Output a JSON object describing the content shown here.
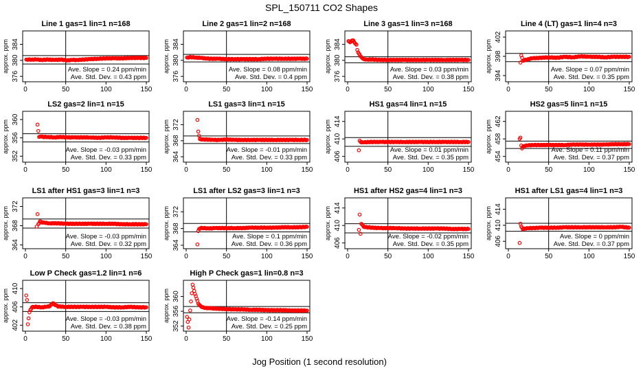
{
  "figure": {
    "title": "SPL_150711  CO2 Shapes",
    "xlabel": "Jog Position (1 second resolution)"
  },
  "chart_data": [
    {
      "type": "scatter",
      "title": "Line 1 gas=1 lin=1 n=168",
      "ylabel": "approx. ppm",
      "xlim": [
        0,
        150
      ],
      "ylim": [
        375,
        387
      ],
      "yticks": [
        376,
        380,
        384
      ],
      "xticks": [
        0,
        50,
        100,
        150
      ],
      "hlines": [
        381.2,
        379.1
      ],
      "vline": 50,
      "annotations": [
        "Ave. Slope = 0.24  ppm/min",
        "Ave. Std. Dev. = 0.43  ppm"
      ],
      "series": [
        {
          "color": "#ff0000",
          "shape": "start-flat-then-slight-rise",
          "x": [
            1,
            8,
            14,
            20,
            28,
            36,
            44,
            52,
            58,
            64,
            72,
            80,
            90,
            100,
            110,
            120,
            130,
            140,
            150
          ],
          "y": [
            380.2,
            380.2,
            380.2,
            380.1,
            380.2,
            380.1,
            380.2,
            380.0,
            380.1,
            380.1,
            380.2,
            380.3,
            380.4,
            380.5,
            380.5,
            380.5,
            380.6,
            380.6,
            380.6
          ]
        }
      ]
    },
    {
      "type": "scatter",
      "title": "Line 2 gas=1 lin=2 n=168",
      "ylabel": "approx. ppm",
      "xlim": [
        0,
        150
      ],
      "ylim": [
        375,
        387
      ],
      "yticks": [
        376,
        380,
        384
      ],
      "xticks": [
        0,
        50,
        100,
        150
      ],
      "hlines": [
        381.5,
        379.6
      ],
      "vline": 50,
      "annotations": [
        "Ave. Slope = 0.08  ppm/min",
        "Ave. Std. Dev. = 0.4  ppm"
      ],
      "series": [
        {
          "color": "#ff0000",
          "x": [
            1,
            6,
            12,
            18,
            24,
            30,
            40,
            50,
            60,
            70,
            80,
            90,
            100,
            110,
            120,
            130,
            140,
            150
          ],
          "y": [
            380.7,
            380.8,
            380.7,
            380.6,
            380.5,
            380.4,
            380.4,
            380.3,
            380.3,
            380.3,
            380.3,
            380.3,
            380.4,
            380.4,
            380.4,
            380.4,
            380.4,
            380.4
          ]
        }
      ]
    },
    {
      "type": "scatter",
      "title": "Line 3 gas=1 lin=3 n=168",
      "ylabel": "approx. ppm",
      "xlim": [
        0,
        150
      ],
      "ylim": [
        375,
        387
      ],
      "yticks": [
        376,
        380,
        384
      ],
      "xticks": [
        0,
        50,
        100,
        150
      ],
      "hlines": [
        380.9,
        379.4
      ],
      "vline": 50,
      "annotations": [
        "Ave. Slope = 0.03  ppm/min",
        "Ave. Std. Dev. = 0.38  ppm"
      ],
      "series": [
        {
          "color": "#ff0000",
          "x": [
            1,
            3,
            5,
            7,
            9,
            11,
            12,
            13,
            14,
            15,
            16,
            18,
            20,
            24,
            30,
            40,
            50,
            60,
            70,
            80,
            90,
            100,
            110,
            120,
            130,
            140,
            150
          ],
          "y": [
            384.8,
            384.5,
            384.9,
            385.0,
            384.3,
            383.9,
            382.6,
            382.0,
            381.7,
            381.4,
            381.0,
            380.6,
            380.3,
            380.2,
            380.2,
            380.1,
            380.1,
            380.1,
            380.1,
            380.1,
            380.1,
            380.1,
            380.1,
            380.1,
            380.1,
            380.1,
            380.1
          ]
        }
      ]
    },
    {
      "type": "scatter",
      "title": "Line 4 (LT) gas=1 lin=4 n=3",
      "ylabel": "approx. ppm",
      "xlim": [
        0,
        150
      ],
      "ylim": [
        393,
        403
      ],
      "yticks": [
        394,
        398,
        402
      ],
      "xticks": [
        0,
        50,
        100,
        150
      ],
      "hlines": [
        398.6,
        396.9
      ],
      "vline": 50,
      "annotations": [
        "Ave. Slope = 0.07  ppm/min",
        "Ave. Std. Dev. = 0.35  ppm"
      ],
      "series": [
        {
          "color": "#ff0000",
          "x": [
            15,
            16,
            17,
            18,
            20,
            24,
            30,
            40,
            50,
            60,
            70,
            80,
            90,
            100,
            110,
            120,
            130,
            140,
            150
          ],
          "y": [
            396.7,
            398.2,
            397.7,
            397.1,
            397.2,
            397.4,
            397.6,
            397.7,
            397.8,
            397.7,
            397.9,
            397.8,
            398.0,
            397.9,
            397.9,
            397.8,
            397.9,
            397.9,
            397.9
          ]
        }
      ]
    },
    {
      "type": "scatter",
      "title": "LS2 gas=2 lin=1 n=15",
      "ylabel": "approx. ppm",
      "xlim": [
        0,
        150
      ],
      "ylim": [
        351,
        361.5
      ],
      "yticks": [
        352,
        356,
        360
      ],
      "xticks": [
        0,
        50,
        100,
        150
      ],
      "hlines": [
        356.9,
        355.1
      ],
      "vline": 50,
      "annotations": [
        "Ave. Slope = -0.03  ppm/min",
        "Ave. Std. Dev. = 0.33  ppm"
      ],
      "series": [
        {
          "color": "#ff0000",
          "x": [
            15,
            17,
            19,
            22,
            28,
            36,
            44,
            52,
            60,
            70,
            80,
            90,
            100,
            110,
            120,
            130,
            140,
            150
          ],
          "y": [
            358.9,
            356.2,
            356.3,
            356.2,
            356.2,
            356.1,
            356.2,
            356.1,
            356.1,
            356.1,
            356.1,
            356.0,
            356.1,
            356.1,
            356.0,
            356.0,
            356.0,
            356.0
          ]
        }
      ]
    },
    {
      "type": "scatter",
      "title": "LS1 gas=3 lin=1 n=15",
      "ylabel": "approx. ppm",
      "xlim": [
        0,
        150
      ],
      "ylim": [
        363,
        375
      ],
      "yticks": [
        364,
        368,
        372
      ],
      "xticks": [
        0,
        50,
        100,
        150
      ],
      "hlines": [
        369.2,
        367.3
      ],
      "vline": 50,
      "annotations": [
        "Ave. Slope = -0.01  ppm/min",
        "Ave. Std. Dev. = 0.33  ppm"
      ],
      "series": [
        {
          "color": "#ff0000",
          "x": [
            14,
            15,
            17,
            20,
            26,
            34,
            42,
            50,
            60,
            70,
            80,
            90,
            100,
            110,
            120,
            130,
            140,
            150
          ],
          "y": [
            373.2,
            370.3,
            368.4,
            368.3,
            368.3,
            368.2,
            368.2,
            368.3,
            368.2,
            368.2,
            368.2,
            368.2,
            368.2,
            368.2,
            368.2,
            368.2,
            368.2,
            368.2
          ]
        }
      ]
    },
    {
      "type": "scatter",
      "title": "HS1 gas=4 lin=1 n=15",
      "ylabel": "approx. ppm",
      "xlim": [
        0,
        150
      ],
      "ylim": [
        405,
        416
      ],
      "yticks": [
        406,
        410,
        414
      ],
      "xticks": [
        0,
        50,
        100,
        150
      ],
      "hlines": [
        410.3,
        408.3
      ],
      "vline": 50,
      "annotations": [
        "Ave. Slope = 0.01  ppm/min",
        "Ave. Std. Dev. = 0.35  ppm"
      ],
      "series": [
        {
          "color": "#ff0000",
          "x": [
            14,
            15,
            17,
            20,
            26,
            34,
            42,
            50,
            60,
            70,
            80,
            90,
            100,
            110,
            120,
            130,
            140,
            150
          ],
          "y": [
            407.4,
            409.6,
            409.2,
            409.2,
            409.3,
            409.3,
            409.3,
            409.3,
            409.3,
            409.3,
            409.3,
            409.3,
            409.3,
            409.3,
            409.3,
            409.3,
            409.3,
            409.3
          ]
        }
      ]
    },
    {
      "type": "scatter",
      "title": "HS2 gas=5 lin=1 n=15",
      "ylabel": "approx. ppm",
      "xlim": [
        0,
        150
      ],
      "ylim": [
        453,
        464
      ],
      "yticks": [
        454,
        458,
        462
      ],
      "xticks": [
        0,
        50,
        100,
        150
      ],
      "hlines": [
        457.5,
        455.8
      ],
      "vline": 50,
      "annotations": [
        "Ave. Slope = 0.11  ppm/min",
        "Ave. Std. Dev. = 0.37  ppm"
      ],
      "series": [
        {
          "color": "#ff0000",
          "x": [
            14,
            15,
            16,
            17,
            18,
            20,
            24,
            30,
            40,
            50,
            60,
            70,
            80,
            90,
            100,
            110,
            120,
            130,
            140,
            150
          ],
          "y": [
            458.0,
            458.3,
            456.5,
            455.8,
            456.2,
            456.4,
            456.5,
            456.6,
            456.6,
            456.6,
            456.6,
            456.6,
            456.7,
            456.7,
            456.7,
            456.7,
            456.7,
            456.8,
            456.8,
            456.8
          ]
        }
      ]
    },
    {
      "type": "scatter",
      "title": "LS1 after HS1 gas=3 lin=1 n=3",
      "ylabel": "approx. ppm",
      "xlim": [
        0,
        150
      ],
      "ylim": [
        363.5,
        373.5
      ],
      "yticks": [
        364,
        368,
        372
      ],
      "xticks": [
        0,
        50,
        100,
        150
      ],
      "hlines": [
        369.4,
        367.5
      ],
      "vline": 50,
      "annotations": [
        "Ave. Slope = -0.03  ppm/min",
        "Ave. Std. Dev. = 0.32  ppm"
      ],
      "series": [
        {
          "color": "#ff0000",
          "x": [
            14,
            15,
            16,
            18,
            20,
            24,
            30,
            40,
            50,
            60,
            70,
            80,
            90,
            100,
            110,
            120,
            130,
            140,
            150
          ],
          "y": [
            367.8,
            370.4,
            368.3,
            368.9,
            368.7,
            368.6,
            368.5,
            368.5,
            368.4,
            368.4,
            368.4,
            368.4,
            368.4,
            368.4,
            368.4,
            368.3,
            368.3,
            368.3,
            368.3
          ]
        }
      ]
    },
    {
      "type": "scatter",
      "title": "LS1 after LS2 gas=3 lin=1 n=3",
      "ylabel": "approx. ppm",
      "xlim": [
        0,
        150
      ],
      "ylim": [
        363.5,
        375
      ],
      "yticks": [
        364,
        368,
        372
      ],
      "xticks": [
        0,
        50,
        100,
        150
      ],
      "hlines": [
        369.2,
        367.2
      ],
      "vline": 50,
      "annotations": [
        "Ave. Slope = 0.1  ppm/min",
        "Ave. Std. Dev. = 0.36  ppm"
      ],
      "series": [
        {
          "color": "#ff0000",
          "x": [
            14,
            15,
            16,
            18,
            22,
            28,
            36,
            44,
            52,
            60,
            70,
            80,
            90,
            100,
            110,
            120,
            130,
            140,
            150
          ],
          "y": [
            364.2,
            367.4,
            367.9,
            368.1,
            368.1,
            368.0,
            368.1,
            368.1,
            368.1,
            368.1,
            368.1,
            368.2,
            368.2,
            368.2,
            368.2,
            368.3,
            368.3,
            368.3,
            368.4
          ]
        }
      ]
    },
    {
      "type": "scatter",
      "title": "HS1 after HS2 gas=4 lin=1 n=3",
      "ylabel": "approx. ppm",
      "xlim": [
        0,
        150
      ],
      "ylim": [
        405,
        416
      ],
      "yticks": [
        406,
        410,
        414
      ],
      "xticks": [
        0,
        50,
        100,
        150
      ],
      "hlines": [
        410.4,
        408.3
      ],
      "vline": 50,
      "annotations": [
        "Ave. Slope = -0.02  ppm/min",
        "Ave. Std. Dev. = 0.35  ppm"
      ],
      "series": [
        {
          "color": "#ff0000",
          "x": [
            14,
            15,
            16,
            17,
            18,
            20,
            24,
            30,
            40,
            50,
            60,
            70,
            80,
            90,
            100,
            110,
            120,
            130,
            140,
            150
          ],
          "y": [
            409.0,
            412.5,
            408.1,
            410.4,
            410.2,
            409.7,
            409.6,
            409.5,
            409.4,
            409.4,
            409.4,
            409.3,
            409.3,
            409.3,
            409.3,
            409.3,
            409.3,
            409.2,
            409.2,
            409.2
          ]
        }
      ]
    },
    {
      "type": "scatter",
      "title": "HS1 after LS1 gas=4 lin=1 n=3",
      "ylabel": "approx. ppm",
      "xlim": [
        0,
        150
      ],
      "ylim": [
        404.5,
        416.5
      ],
      "yticks": [
        406,
        410,
        414
      ],
      "xticks": [
        0,
        50,
        100,
        150
      ],
      "hlines": [
        410.5,
        408.5
      ],
      "vline": 50,
      "annotations": [
        "Ave. Slope = 0  ppm/min",
        "Ave. Std. Dev. = 0.37  ppm"
      ],
      "series": [
        {
          "color": "#ff0000",
          "x": [
            14,
            15,
            16,
            17,
            18,
            20,
            24,
            30,
            40,
            50,
            60,
            70,
            80,
            90,
            100,
            110,
            120,
            130,
            140,
            150
          ],
          "y": [
            405.6,
            410.4,
            409.7,
            409.4,
            409.0,
            409.2,
            409.3,
            409.3,
            409.4,
            409.4,
            409.4,
            409.5,
            409.5,
            409.5,
            409.5,
            409.5,
            409.5,
            409.5,
            409.6,
            409.4
          ]
        }
      ]
    },
    {
      "type": "scatter",
      "title": "Low P Check gas=1.2 lin=1 n=6",
      "ylabel": "approx. ppm",
      "xlim": [
        0,
        150
      ],
      "ylim": [
        401,
        411.5
      ],
      "yticks": [
        402,
        406,
        410
      ],
      "xticks": [
        0,
        50,
        100,
        150
      ],
      "hlines": [
        406.9,
        405.0
      ],
      "vline": 50,
      "annotations": [
        "Ave. Slope = -0.03  ppm/min",
        "Ave. Std. Dev. = 0.38  ppm"
      ],
      "series": [
        {
          "color": "#ff0000",
          "x": [
            1,
            2,
            3,
            4,
            5,
            6,
            8,
            10,
            14,
            20,
            26,
            30,
            34,
            40,
            50,
            60,
            70,
            80,
            90,
            100,
            110,
            120,
            130,
            140,
            150
          ],
          "y": [
            408.5,
            407.5,
            402.2,
            403.5,
            404.8,
            405.3,
            405.9,
            406.0,
            406.0,
            405.9,
            406.0,
            406.1,
            406.8,
            406.1,
            406.0,
            406.0,
            406.0,
            406.0,
            406.0,
            406.0,
            405.9,
            405.9,
            406.0,
            405.9,
            405.9
          ]
        }
      ]
    },
    {
      "type": "scatter",
      "title": "High P Check gas=1 lin=0.8 n=3",
      "ylabel": "approx. ppm",
      "xlim": [
        0,
        150
      ],
      "ylim": [
        351,
        364
      ],
      "yticks": [
        352,
        356,
        360
      ],
      "xticks": [
        0,
        50,
        100,
        150
      ],
      "hlines": [
        357.3,
        355.6
      ],
      "vline": 50,
      "annotations": [
        "Ave. Slope = -0.14  ppm/min",
        "Ave. Std. Dev. = 0.25  ppm"
      ],
      "series": [
        {
          "color": "#ff0000",
          "x": [
            1,
            3,
            8,
            10,
            11,
            12,
            13,
            14,
            15,
            17,
            20,
            24,
            30,
            40,
            50,
            60,
            70,
            80,
            90,
            100,
            110,
            120,
            130,
            140,
            150
          ],
          "y": [
            354.5,
            351.6,
            363.2,
            361.5,
            360.7,
            360.1,
            359.4,
            358.8,
            358.1,
            357.6,
            357.1,
            356.9,
            356.8,
            356.7,
            356.6,
            356.5,
            356.5,
            356.4,
            356.4,
            356.3,
            356.3,
            356.3,
            356.2,
            356.2,
            356.2
          ]
        }
      ]
    }
  ]
}
